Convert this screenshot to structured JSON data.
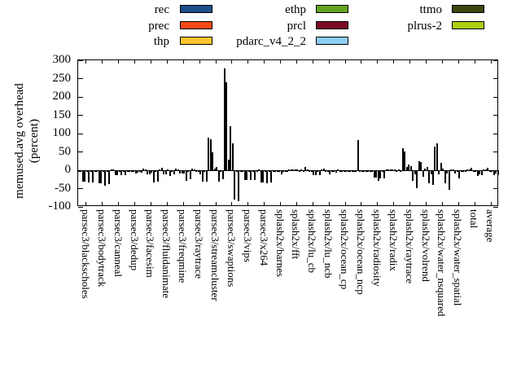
{
  "y_axis": {
    "title_line1": "memused.avg overhead",
    "title_line2": "(percent)",
    "ticks": [
      300,
      250,
      200,
      150,
      100,
      50,
      0,
      -50,
      -100
    ]
  },
  "legend": {
    "columns": [
      [
        "rec",
        "prec",
        "thp"
      ],
      [
        "ethp",
        "prcl",
        "pdarc_v4_2_2"
      ],
      [
        "ttmo",
        "plrus-2"
      ]
    ]
  },
  "chart_data": {
    "type": "bar",
    "title": "",
    "xlabel": "",
    "ylabel": "memused.avg overhead (percent)",
    "ylim": [
      -100,
      300
    ],
    "grid": false,
    "legend_position": "top",
    "categories": [
      "parsec3/blackscholes",
      "parsec3/bodytrack",
      "parsec3/canneal",
      "parsec3/dedup",
      "parsec3/facesim",
      "parsec3/fluidanimate",
      "parsec3/freqmine",
      "parsec3/raytrace",
      "parsec3/streamcluster",
      "parsec3/swaptions",
      "parsec3/vips",
      "parsec3/x264",
      "splash2x/barnes",
      "splash2x/fft",
      "splash2x/lu_cb",
      "splash2x/lu_ncb",
      "splash2x/ocean_cp",
      "splash2x/ocean_ncp",
      "splash2x/radiosity",
      "splash2x/radix",
      "splash2x/raytrace",
      "splash2x/volrend",
      "splash2x/water_nsquared",
      "splash2x/water_spatial",
      "total",
      "average"
    ],
    "series": [
      {
        "name": "rec",
        "color": "#1c4e8c",
        "values": [
          -2,
          -1,
          1,
          -1,
          4,
          2,
          5,
          5,
          88,
          277,
          -2,
          -3,
          -2,
          2,
          8,
          2,
          2,
          -2,
          -1,
          2,
          61,
          25,
          65,
          3,
          2,
          2
        ]
      },
      {
        "name": "prec",
        "color": "#fb4a18",
        "values": [
          -5,
          -2,
          3,
          -2,
          1,
          6,
          3,
          2,
          85,
          240,
          -3,
          2,
          -5,
          3,
          3,
          4,
          -2,
          -2,
          -2,
          3,
          52,
          22,
          73,
          1,
          3,
          3
        ]
      },
      {
        "name": "thp",
        "color": "#fcc62c",
        "values": [
          -30,
          -35,
          -13,
          -5,
          -10,
          -10,
          -8,
          -5,
          50,
          29,
          -27,
          -33,
          -2,
          2,
          -2,
          -3,
          -3,
          82,
          -20,
          1,
          8,
          -18,
          -12,
          -9,
          6,
          7
        ]
      },
      {
        "name": "ethp",
        "color": "#63a420",
        "values": [
          -31,
          -35,
          -13,
          -5,
          -10,
          -12,
          -8,
          -5,
          5,
          120,
          -27,
          -33,
          -2,
          1,
          -3,
          -4,
          -3,
          -3,
          -20,
          1,
          16,
          5,
          20,
          -3,
          -2,
          -2
        ]
      },
      {
        "name": "prcl",
        "color": "#7c0b26",
        "values": [
          -3,
          -3,
          -2,
          -8,
          -6,
          3,
          -8,
          -10,
          8,
          74,
          -5,
          -3,
          -12,
          2,
          -13,
          -12,
          -3,
          -3,
          -28,
          2,
          12,
          8,
          5,
          -23,
          -3,
          -3
        ]
      },
      {
        "name": "pdarc_v4_2_2",
        "color": "#8ecef2",
        "values": [
          -33,
          -42,
          -14,
          -6,
          -34,
          -15,
          -28,
          -30,
          -30,
          -81,
          -27,
          -35,
          -3,
          -2,
          -13,
          -5,
          -4,
          -4,
          -23,
          -2,
          -29,
          -35,
          -35,
          -4,
          -15,
          -13
        ]
      },
      {
        "name": "ttmo",
        "color": "#3c470e",
        "values": [
          -2,
          -2,
          -2,
          -2,
          -2,
          -2,
          -2,
          -2,
          -3,
          -5,
          -3,
          -3,
          -2,
          1,
          -3,
          -2,
          -2,
          -2,
          -4,
          1,
          -10,
          -12,
          -8,
          -5,
          -10,
          -8
        ]
      },
      {
        "name": "plrus-2",
        "color": "#abce10",
        "values": [
          -33,
          -37,
          -13,
          -6,
          -30,
          -12,
          -25,
          -30,
          -25,
          -85,
          -27,
          -33,
          -3,
          -2,
          -14,
          -6,
          -4,
          -4,
          -23,
          -2,
          -48,
          -40,
          -54,
          -5,
          -13,
          -13
        ]
      }
    ]
  }
}
